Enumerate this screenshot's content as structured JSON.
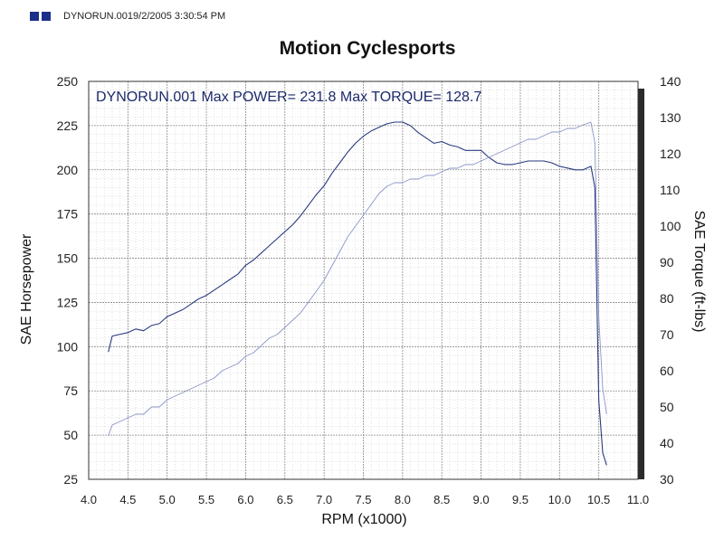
{
  "header": {
    "text": "DYNORUN.0019/2/2005 3:30:54 PM",
    "logo_colors": [
      "#1a2f8a",
      "#1a2f8a"
    ]
  },
  "chart_data": {
    "type": "line",
    "title": "Motion Cyclesports",
    "annotation": "DYNORUN.001  Max POWER= 231.8  Max TORQUE= 128.7",
    "xlabel": "RPM (x1000)",
    "ylabel": "SAE Horsepower",
    "y2label": "SAE Torque (ft-lbs)",
    "xlim": [
      4.0,
      11.0
    ],
    "ylim": [
      25,
      250
    ],
    "y2lim": [
      30,
      140
    ],
    "x_ticks": [
      "4.0",
      "4.5",
      "5.0",
      "5.5",
      "6.0",
      "6.5",
      "7.0",
      "7.5",
      "8.0",
      "8.5",
      "9.0",
      "9.5",
      "10.0",
      "10.5",
      "11.0"
    ],
    "y_ticks": [
      "25",
      "50",
      "75",
      "100",
      "125",
      "150",
      "175",
      "200",
      "225",
      "250"
    ],
    "y2_ticks": [
      "30",
      "40",
      "50",
      "60",
      "70",
      "80",
      "90",
      "100",
      "110",
      "120",
      "130",
      "140"
    ],
    "grid": true,
    "series": [
      {
        "name": "",
        "axis": "left",
        "color": "#2a3a80",
        "x": [
          4.25,
          4.3,
          4.4,
          4.5,
          4.6,
          4.7,
          4.8,
          4.9,
          5.0,
          5.1,
          5.2,
          5.3,
          5.4,
          5.5,
          5.6,
          5.7,
          5.8,
          5.9,
          6.0,
          6.1,
          6.2,
          6.3,
          6.4,
          6.5,
          6.6,
          6.7,
          6.8,
          6.9,
          7.0,
          7.1,
          7.2,
          7.3,
          7.4,
          7.5,
          7.6,
          7.7,
          7.8,
          7.9,
          8.0,
          8.1,
          8.2,
          8.3,
          8.4,
          8.5,
          8.6,
          8.7,
          8.8,
          8.9,
          9.0,
          9.1,
          9.2,
          9.3,
          9.4,
          9.5,
          9.6,
          9.7,
          9.8,
          9.9,
          10.0,
          10.1,
          10.2,
          10.3,
          10.4,
          10.45,
          10.5,
          10.55,
          10.6
        ],
        "values": [
          97,
          106,
          107,
          108,
          110,
          109,
          112,
          113,
          117,
          119,
          121,
          124,
          127,
          129,
          132,
          135,
          138,
          141,
          146,
          149,
          153,
          157,
          161,
          165,
          169,
          174,
          180,
          186,
          191,
          198,
          204,
          210,
          215,
          219,
          222,
          224,
          226,
          227,
          227,
          225,
          221,
          218,
          215,
          216,
          214,
          213,
          211,
          211,
          211,
          207,
          204,
          203,
          203,
          204,
          205,
          205,
          205,
          204,
          202,
          201,
          200,
          200,
          202,
          190,
          70,
          40,
          33
        ]
      },
      {
        "name": "",
        "axis": "right",
        "color": "#8a96c8",
        "x": [
          4.25,
          4.3,
          4.4,
          4.5,
          4.6,
          4.7,
          4.8,
          4.9,
          5.0,
          5.1,
          5.2,
          5.3,
          5.4,
          5.5,
          5.6,
          5.7,
          5.8,
          5.9,
          6.0,
          6.1,
          6.2,
          6.3,
          6.4,
          6.5,
          6.6,
          6.7,
          6.8,
          6.9,
          7.0,
          7.1,
          7.2,
          7.3,
          7.4,
          7.5,
          7.6,
          7.7,
          7.8,
          7.9,
          8.0,
          8.1,
          8.2,
          8.3,
          8.4,
          8.5,
          8.6,
          8.7,
          8.8,
          8.9,
          9.0,
          9.1,
          9.2,
          9.3,
          9.4,
          9.5,
          9.6,
          9.7,
          9.8,
          9.9,
          10.0,
          10.1,
          10.2,
          10.3,
          10.4,
          10.45,
          10.5,
          10.55,
          10.6
        ],
        "values": [
          42,
          45,
          46,
          47,
          48,
          48,
          50,
          50,
          52,
          53,
          54,
          55,
          56,
          57,
          58,
          60,
          61,
          62,
          64,
          65,
          67,
          69,
          70,
          72,
          74,
          76,
          79,
          82,
          85,
          89,
          93,
          97,
          100,
          103,
          106,
          109,
          111,
          112,
          112,
          113,
          113,
          114,
          114,
          115,
          116,
          116,
          117,
          117,
          118,
          119,
          120,
          121,
          122,
          123,
          124,
          124,
          125,
          126,
          126,
          127,
          127,
          128,
          128.7,
          123,
          75,
          55,
          48
        ]
      }
    ]
  }
}
